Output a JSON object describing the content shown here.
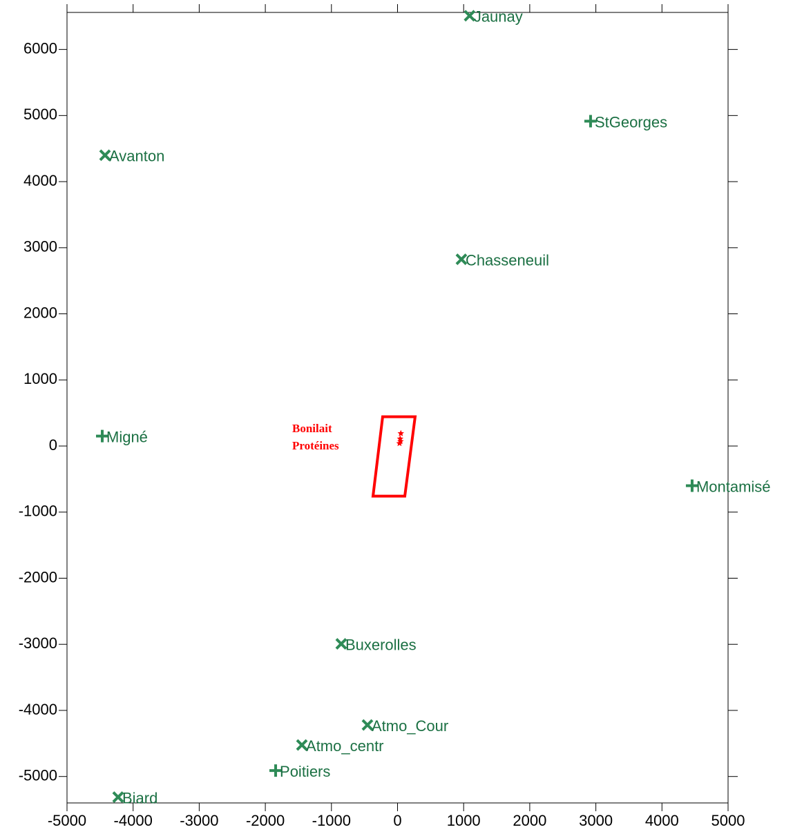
{
  "chart_data": {
    "type": "scatter",
    "xlim": [
      -5000,
      5000
    ],
    "ylim": [
      -5400,
      6560
    ],
    "xticks": [
      -5000,
      -4000,
      -3000,
      -2000,
      -1000,
      0,
      1000,
      2000,
      3000,
      4000,
      5000
    ],
    "yticks": [
      -5000,
      -4000,
      -3000,
      -2000,
      -1000,
      0,
      1000,
      2000,
      3000,
      4000,
      5000,
      6000
    ],
    "marker_color": "#2e8b57",
    "label_color": "#1b7043",
    "points": [
      {
        "label": "Jaunay",
        "x": 1090,
        "y": 6510,
        "marker": "x"
      },
      {
        "label": "StGeorges",
        "x": 2920,
        "y": 4915,
        "marker": "plus"
      },
      {
        "label": "Avanton",
        "x": -4425,
        "y": 4400,
        "marker": "x"
      },
      {
        "label": "Chasseneuil",
        "x": 966,
        "y": 2825,
        "marker": "x"
      },
      {
        "label": "Migné",
        "x": -4467,
        "y": 150,
        "marker": "plus"
      },
      {
        "label": "Montamisé",
        "x": 4456,
        "y": -600,
        "marker": "plus"
      },
      {
        "label": "Buxerolles",
        "x": -852,
        "y": -2993,
        "marker": "x"
      },
      {
        "label": "Atmo_Cour",
        "x": -455,
        "y": -4220,
        "marker": "x"
      },
      {
        "label": "Atmo_centr",
        "x": -1447,
        "y": -4523,
        "marker": "x"
      },
      {
        "label": "Poitiers",
        "x": -1844,
        "y": -4910,
        "marker": "plus"
      },
      {
        "label": "Biard",
        "x": -4227,
        "y": -5312,
        "marker": "x"
      }
    ],
    "polygon": {
      "x": [
        -225,
        266,
        110,
        -371
      ],
      "y": [
        443,
        443,
        -758,
        -758
      ],
      "color": "#ff0000"
    },
    "sources": {
      "x": [
        50,
        40,
        45,
        30
      ],
      "y": [
        190,
        110,
        70,
        40
      ],
      "color": "#ff0000"
    },
    "annotation": [
      "Bonilait",
      "Protéines"
    ]
  }
}
